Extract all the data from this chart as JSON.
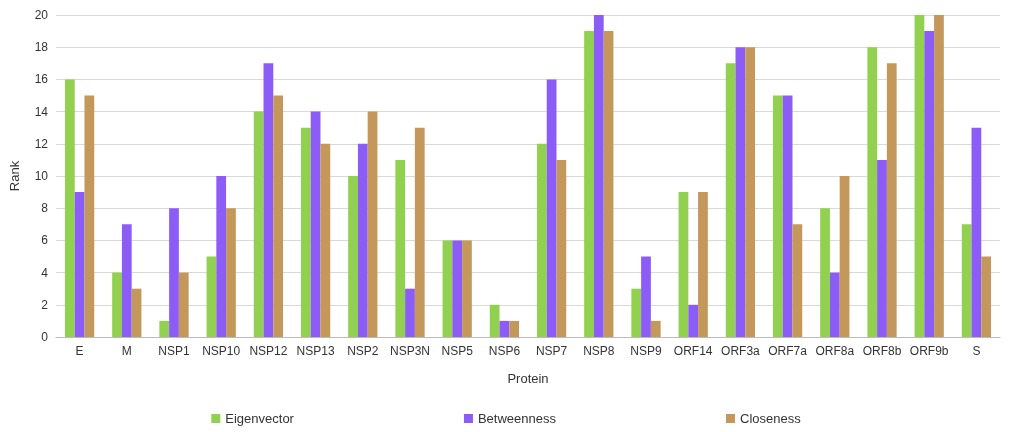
{
  "chart_data": {
    "type": "bar",
    "xlabel": "Protein",
    "ylabel": "Rank",
    "categories": [
      "E",
      "M",
      "NSP1",
      "NSP10",
      "NSP12",
      "NSP13",
      "NSP2",
      "NSP3N",
      "NSP5",
      "NSP6",
      "NSP7",
      "NSP8",
      "NSP9",
      "ORF14",
      "ORF3a",
      "ORF7a",
      "ORF8a",
      "ORF8b",
      "ORF9b",
      "S"
    ],
    "series": [
      {
        "name": "Eigenvector",
        "color": "#92d050",
        "values": [
          16,
          4,
          1,
          5,
          14,
          13,
          10,
          11,
          6,
          2,
          12,
          19,
          3,
          9,
          17,
          15,
          8,
          18,
          20,
          7
        ]
      },
      {
        "name": "Betweenness",
        "color": "#8b5cf6",
        "values": [
          9,
          7,
          8,
          10,
          17,
          14,
          12,
          3,
          6,
          1,
          16,
          20,
          5,
          2,
          18,
          15,
          4,
          11,
          19,
          13
        ]
      },
      {
        "name": "Closeness",
        "color": "#c4975a",
        "values": [
          15,
          3,
          4,
          8,
          15,
          12,
          14,
          13,
          6,
          1,
          11,
          19,
          1,
          9,
          18,
          7,
          10,
          17,
          20,
          5
        ]
      }
    ],
    "ylim": [
      0,
      20
    ],
    "yticks": [
      0,
      2,
      4,
      6,
      8,
      10,
      12,
      14,
      16,
      18,
      20
    ],
    "grid": "y",
    "legend": "bottom"
  }
}
